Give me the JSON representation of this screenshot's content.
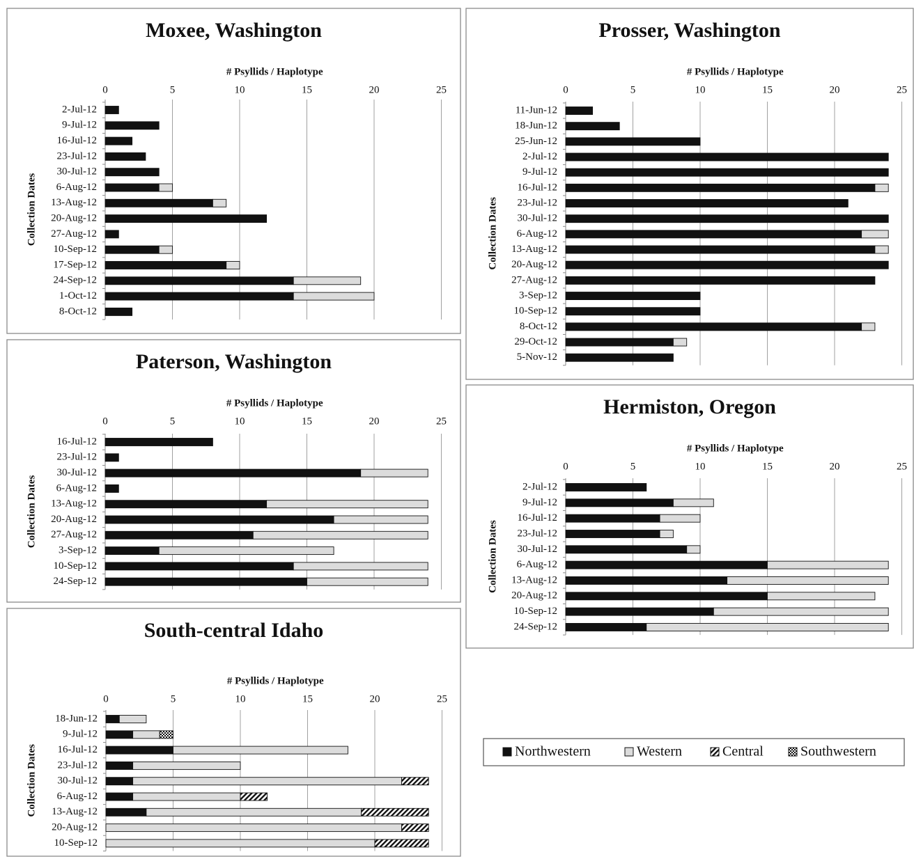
{
  "colors": {
    "Northwestern": "#111111",
    "Western": "#dcdcdc",
    "Central": "hatch",
    "Southwestern": "checker",
    "grid": "#a0a0a0",
    "border": "#8a8a8a"
  },
  "legend": {
    "items": [
      "Northwestern",
      "Western",
      "Central",
      "Southwestern"
    ]
  },
  "chart_data": [
    {
      "type": "bar",
      "orientation": "horizontal",
      "stacked": true,
      "title": "Moxee, Washington",
      "xlabel": "# Psyllids / Haplotype",
      "ylabel": "Collection Dates",
      "xlim": [
        0,
        25
      ],
      "xticks": [
        0,
        5,
        10,
        15,
        20,
        25
      ],
      "grid": true,
      "categories": [
        "2-Jul-12",
        "9-Jul-12",
        "16-Jul-12",
        "23-Jul-12",
        "30-Jul-12",
        "6-Aug-12",
        "13-Aug-12",
        "20-Aug-12",
        "27-Aug-12",
        "10-Sep-12",
        "17-Sep-12",
        "24-Sep-12",
        "1-Oct-12",
        "8-Oct-12"
      ],
      "series": [
        {
          "name": "Northwestern",
          "values": [
            1,
            4,
            2,
            3,
            4,
            4,
            8,
            12,
            1,
            4,
            9,
            14,
            14,
            2
          ]
        },
        {
          "name": "Western",
          "values": [
            0,
            0,
            0,
            0,
            0,
            1,
            1,
            0,
            0,
            1,
            1,
            5,
            6,
            0
          ]
        }
      ]
    },
    {
      "type": "bar",
      "orientation": "horizontal",
      "stacked": true,
      "title": "Paterson, Washington",
      "xlabel": "# Psyllids / Haplotype",
      "ylabel": "Collection Dates",
      "xlim": [
        0,
        25
      ],
      "xticks": [
        0,
        5,
        10,
        15,
        20,
        25
      ],
      "grid": true,
      "categories": [
        "16-Jul-12",
        "23-Jul-12",
        "30-Jul-12",
        "6-Aug-12",
        "13-Aug-12",
        "20-Aug-12",
        "27-Aug-12",
        "3-Sep-12",
        "10-Sep-12",
        "24-Sep-12"
      ],
      "series": [
        {
          "name": "Northwestern",
          "values": [
            8,
            1,
            19,
            1,
            12,
            17,
            11,
            4,
            14,
            15
          ]
        },
        {
          "name": "Western",
          "values": [
            0,
            0,
            5,
            0,
            12,
            7,
            13,
            13,
            10,
            9
          ]
        }
      ]
    },
    {
      "type": "bar",
      "orientation": "horizontal",
      "stacked": true,
      "title": "South-central Idaho",
      "xlabel": "# Psyllids / Haplotype",
      "ylabel": "Collection Dates",
      "xlim": [
        0,
        25
      ],
      "xticks": [
        0,
        5,
        10,
        15,
        20,
        25
      ],
      "grid": true,
      "categories": [
        "18-Jun-12",
        "9-Jul-12",
        "16-Jul-12",
        "23-Jul-12",
        "30-Jul-12",
        "6-Aug-12",
        "13-Aug-12",
        "20-Aug-12",
        "10-Sep-12"
      ],
      "series": [
        {
          "name": "Northwestern",
          "values": [
            1,
            2,
            5,
            2,
            2,
            2,
            3,
            0,
            0
          ]
        },
        {
          "name": "Western",
          "values": [
            2,
            2,
            13,
            8,
            20,
            8,
            16,
            22,
            20
          ]
        },
        {
          "name": "Central",
          "values": [
            0,
            0,
            0,
            0,
            2,
            2,
            5,
            2,
            4
          ]
        },
        {
          "name": "Southwestern",
          "values": [
            0,
            1,
            0,
            0,
            0,
            0,
            0,
            0,
            0
          ]
        }
      ]
    },
    {
      "type": "bar",
      "orientation": "horizontal",
      "stacked": true,
      "title": "Prosser, Washington",
      "xlabel": "# Psyllids / Haplotype",
      "ylabel": "Collection Dates",
      "xlim": [
        0,
        25
      ],
      "xticks": [
        0,
        5,
        10,
        15,
        20,
        25
      ],
      "grid": true,
      "categories": [
        "11-Jun-12",
        "18-Jun-12",
        "25-Jun-12",
        "2-Jul-12",
        "9-Jul-12",
        "16-Jul-12",
        "23-Jul-12",
        "30-Jul-12",
        "6-Aug-12",
        "13-Aug-12",
        "20-Aug-12",
        "27-Aug-12",
        "3-Sep-12",
        "10-Sep-12",
        "8-Oct-12",
        "29-Oct-12",
        "5-Nov-12"
      ],
      "series": [
        {
          "name": "Northwestern",
          "values": [
            2,
            4,
            10,
            24,
            24,
            23,
            21,
            24,
            22,
            23,
            24,
            23,
            10,
            10,
            22,
            8,
            8
          ]
        },
        {
          "name": "Western",
          "values": [
            0,
            0,
            0,
            0,
            0,
            1,
            0,
            0,
            2,
            1,
            0,
            0,
            0,
            0,
            1,
            1,
            0
          ]
        }
      ]
    },
    {
      "type": "bar",
      "orientation": "horizontal",
      "stacked": true,
      "title": "Hermiston, Oregon",
      "xlabel": "# Psyllids / Haplotype",
      "ylabel": "Collection Dates",
      "xlim": [
        0,
        25
      ],
      "xticks": [
        0,
        5,
        10,
        15,
        20,
        25
      ],
      "grid": true,
      "categories": [
        "2-Jul-12",
        "9-Jul-12",
        "16-Jul-12",
        "23-Jul-12",
        "30-Jul-12",
        "6-Aug-12",
        "13-Aug-12",
        "20-Aug-12",
        "10-Sep-12",
        "24-Sep-12"
      ],
      "series": [
        {
          "name": "Northwestern",
          "values": [
            6,
            8,
            7,
            7,
            9,
            15,
            12,
            15,
            11,
            6
          ]
        },
        {
          "name": "Western",
          "values": [
            0,
            3,
            3,
            1,
            1,
            9,
            12,
            8,
            13,
            18
          ]
        }
      ]
    }
  ]
}
